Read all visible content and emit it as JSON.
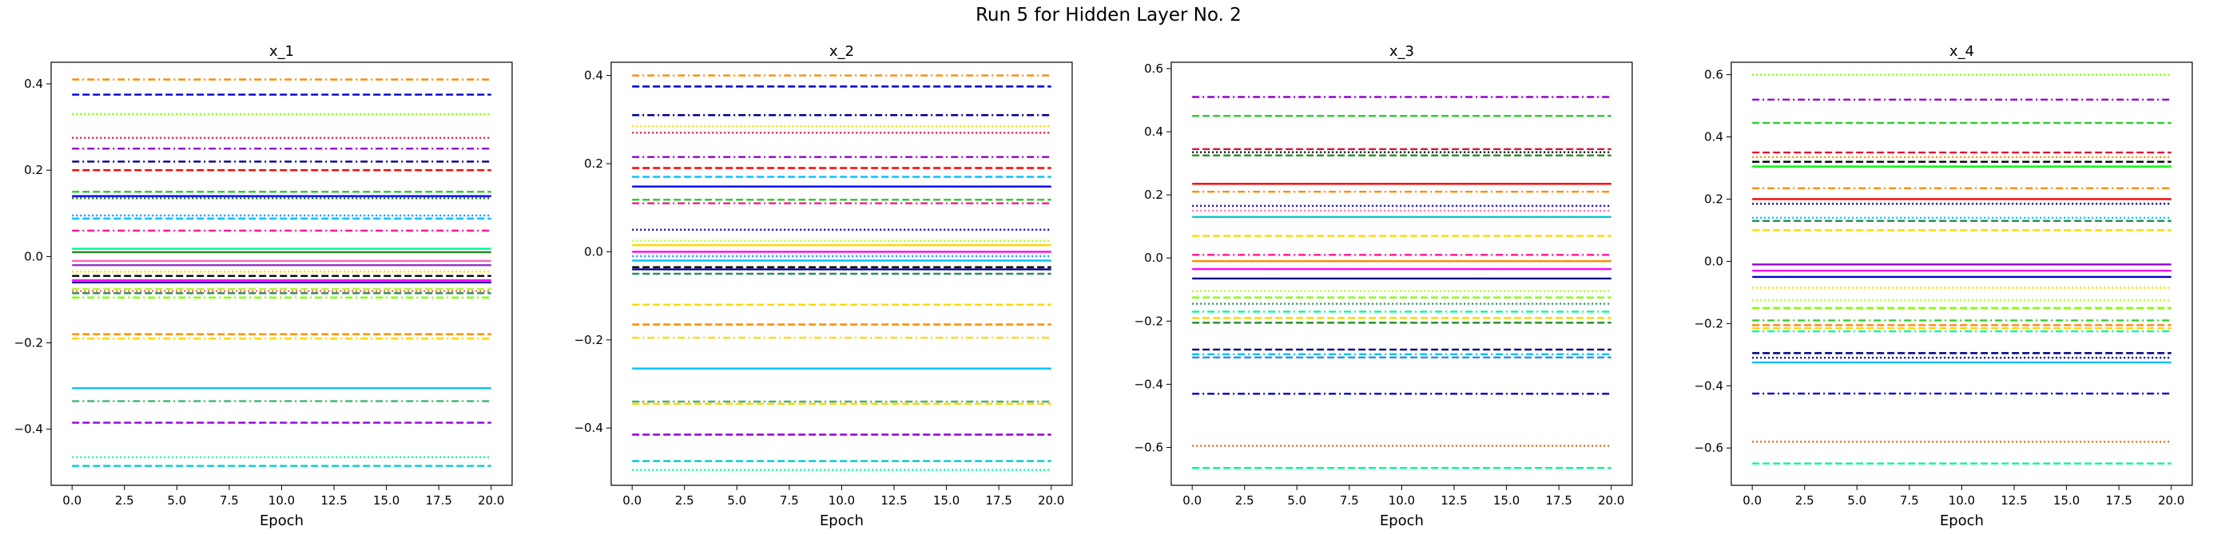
{
  "figure_title": "Run 5 for Hidden Layer No. 2",
  "chart_data": [
    {
      "type": "line",
      "title": "x_1",
      "xlabel": "Epoch",
      "ylabel": "",
      "xlim": [
        -1,
        21
      ],
      "ylim": [
        -0.53,
        0.45
      ],
      "xticks": [
        0.0,
        2.5,
        5.0,
        7.5,
        10.0,
        12.5,
        15.0,
        17.5,
        20.0
      ],
      "yticks": [
        -0.4,
        -0.2,
        0.0,
        0.2,
        0.4
      ],
      "x": [
        0,
        20
      ],
      "series": [
        {
          "color": "#ff8c00",
          "dash": "dashdot",
          "value": 0.41
        },
        {
          "color": "#0000cd",
          "dash": "dashed",
          "value": 0.375
        },
        {
          "color": "#7fff00",
          "dash": "dotted",
          "value": 0.33
        },
        {
          "color": "#dc143c",
          "dash": "dotted",
          "value": 0.275
        },
        {
          "color": "#9400d3",
          "dash": "dashdot",
          "value": 0.25
        },
        {
          "color": "#00008b",
          "dash": "dashdot",
          "value": 0.22
        },
        {
          "color": "#ff0000",
          "dash": "dashed",
          "value": 0.2
        },
        {
          "color": "#32cd32",
          "dash": "dashed",
          "value": 0.15
        },
        {
          "color": "#006400",
          "dash": "dotted",
          "value": 0.135
        },
        {
          "color": "#0000ff",
          "dash": "solid",
          "value": 0.14
        },
        {
          "color": "#1e90ff",
          "dash": "dotted",
          "value": 0.095
        },
        {
          "color": "#00bfff",
          "dash": "dashed",
          "value": 0.088
        },
        {
          "color": "#ff1493",
          "dash": "dashdot",
          "value": 0.06
        },
        {
          "color": "#00fa9a",
          "dash": "solid",
          "value": 0.018
        },
        {
          "color": "#228b22",
          "dash": "solid",
          "value": 0.01
        },
        {
          "color": "#ff69b4",
          "dash": "solid",
          "value": -0.01
        },
        {
          "color": "#9932cc",
          "dash": "solid",
          "value": -0.02
        },
        {
          "color": "#ffd700",
          "dash": "dotted",
          "value": -0.035
        },
        {
          "color": "#000000",
          "dash": "dashed",
          "value": -0.045
        },
        {
          "color": "#ff00ff",
          "dash": "solid",
          "value": -0.055
        },
        {
          "color": "#00008b",
          "dash": "solid",
          "value": -0.06
        },
        {
          "color": "#adff2f",
          "dash": "dashed",
          "value": -0.075
        },
        {
          "color": "#ff6347",
          "dash": "dotted",
          "value": -0.08
        },
        {
          "color": "#2e8b57",
          "dash": "dashed",
          "value": -0.085
        },
        {
          "color": "#7fff00",
          "dash": "dashdot",
          "value": -0.095
        },
        {
          "color": "#ff8c00",
          "dash": "dashed",
          "value": -0.18
        },
        {
          "color": "#ffd700",
          "dash": "dashdot",
          "value": -0.19
        },
        {
          "color": "#00bfff",
          "dash": "solid",
          "value": -0.305
        },
        {
          "color": "#3cb371",
          "dash": "dashdot",
          "value": -0.335
        },
        {
          "color": "#9400d3",
          "dash": "dashed",
          "value": -0.385
        },
        {
          "color": "#00fa9a",
          "dash": "dotted",
          "value": -0.465
        },
        {
          "color": "#00ced1",
          "dash": "dashed",
          "value": -0.485
        }
      ]
    },
    {
      "type": "line",
      "title": "x_2",
      "xlabel": "Epoch",
      "ylabel": "",
      "xlim": [
        -1,
        21
      ],
      "ylim": [
        -0.53,
        0.43
      ],
      "xticks": [
        0.0,
        2.5,
        5.0,
        7.5,
        10.0,
        12.5,
        15.0,
        17.5,
        20.0
      ],
      "yticks": [
        -0.4,
        -0.2,
        0.0,
        0.2,
        0.4
      ],
      "x": [
        0,
        20
      ],
      "series": [
        {
          "color": "#ff8c00",
          "dash": "dashdot",
          "value": 0.4
        },
        {
          "color": "#0000cd",
          "dash": "dashed",
          "value": 0.375
        },
        {
          "color": "#00008b",
          "dash": "dashdot",
          "value": 0.31
        },
        {
          "color": "#ffd700",
          "dash": "dotted",
          "value": 0.285
        },
        {
          "color": "#dc143c",
          "dash": "dotted",
          "value": 0.27
        },
        {
          "color": "#9400d3",
          "dash": "dashdot",
          "value": 0.215
        },
        {
          "color": "#ff0000",
          "dash": "dashed",
          "value": 0.19
        },
        {
          "color": "#00bfff",
          "dash": "dashed",
          "value": 0.17
        },
        {
          "color": "#0000ff",
          "dash": "solid",
          "value": 0.148
        },
        {
          "color": "#32cd32",
          "dash": "dashed",
          "value": 0.118
        },
        {
          "color": "#ff1493",
          "dash": "dashdot",
          "value": 0.11
        },
        {
          "color": "#0000cd",
          "dash": "dotted",
          "value": 0.05
        },
        {
          "color": "#adff2f",
          "dash": "dotted",
          "value": 0.025
        },
        {
          "color": "#ffd700",
          "dash": "solid",
          "value": 0.015
        },
        {
          "color": "#ff00ff",
          "dash": "solid",
          "value": 0.0
        },
        {
          "color": "#1e90ff",
          "dash": "dotted",
          "value": -0.01
        },
        {
          "color": "#00bfff",
          "dash": "solid",
          "value": -0.02
        },
        {
          "color": "#000000",
          "dash": "dashed",
          "value": -0.035
        },
        {
          "color": "#00008b",
          "dash": "solid",
          "value": -0.04
        },
        {
          "color": "#2e8b57",
          "dash": "dashed",
          "value": -0.05
        },
        {
          "color": "#ffd700",
          "dash": "dashed",
          "value": -0.12
        },
        {
          "color": "#ff8c00",
          "dash": "dashed",
          "value": -0.165
        },
        {
          "color": "#ffd700",
          "dash": "dashdot",
          "value": -0.195
        },
        {
          "color": "#00bfff",
          "dash": "solid",
          "value": -0.265
        },
        {
          "color": "#3cb371",
          "dash": "dashdot",
          "value": -0.34
        },
        {
          "color": "#ffd700",
          "dash": "dashed",
          "value": -0.345
        },
        {
          "color": "#9400d3",
          "dash": "dashed",
          "value": -0.415
        },
        {
          "color": "#00ced1",
          "dash": "dashed",
          "value": -0.475
        },
        {
          "color": "#00fa9a",
          "dash": "dotted",
          "value": -0.495
        }
      ]
    },
    {
      "type": "line",
      "title": "x_3",
      "xlabel": "Epoch",
      "ylabel": "",
      "xlim": [
        -1,
        21
      ],
      "ylim": [
        -0.72,
        0.62
      ],
      "xticks": [
        0.0,
        2.5,
        5.0,
        7.5,
        10.0,
        12.5,
        15.0,
        17.5,
        20.0
      ],
      "yticks": [
        -0.6,
        -0.4,
        -0.2,
        0.0,
        0.2,
        0.4,
        0.6
      ],
      "x": [
        0,
        20
      ],
      "series": [
        {
          "color": "#9400d3",
          "dash": "dashdot",
          "value": 0.51
        },
        {
          "color": "#32cd32",
          "dash": "dashed",
          "value": 0.45
        },
        {
          "color": "#dc143c",
          "dash": "dashed",
          "value": 0.345
        },
        {
          "color": "#000000",
          "dash": "dotted",
          "value": 0.335
        },
        {
          "color": "#228b22",
          "dash": "dashed",
          "value": 0.325
        },
        {
          "color": "#ff0000",
          "dash": "solid",
          "value": 0.235
        },
        {
          "color": "#ff8c00",
          "dash": "dashdot",
          "value": 0.21
        },
        {
          "color": "#0000cd",
          "dash": "dotted",
          "value": 0.165
        },
        {
          "color": "#ff69b4",
          "dash": "dotted",
          "value": 0.15
        },
        {
          "color": "#00ced1",
          "dash": "solid",
          "value": 0.13
        },
        {
          "color": "#ffd700",
          "dash": "dashed",
          "value": 0.07
        },
        {
          "color": "#ff1493",
          "dash": "dashdot",
          "value": 0.01
        },
        {
          "color": "#ff8c00",
          "dash": "solid",
          "value": -0.01
        },
        {
          "color": "#ff00ff",
          "dash": "solid",
          "value": -0.035
        },
        {
          "color": "#00008b",
          "dash": "solid",
          "value": -0.065
        },
        {
          "color": "#adff2f",
          "dash": "dotted",
          "value": -0.105
        },
        {
          "color": "#7fff00",
          "dash": "dashed",
          "value": -0.125
        },
        {
          "color": "#2e8b57",
          "dash": "dotted",
          "value": -0.145
        },
        {
          "color": "#00fa9a",
          "dash": "dashdot",
          "value": -0.17
        },
        {
          "color": "#ffd700",
          "dash": "dashed",
          "value": -0.19
        },
        {
          "color": "#228b22",
          "dash": "dashed",
          "value": -0.205
        },
        {
          "color": "#000080",
          "dash": "dashed",
          "value": -0.29
        },
        {
          "color": "#00bfff",
          "dash": "dashdot",
          "value": -0.305
        },
        {
          "color": "#1e90ff",
          "dash": "dashed",
          "value": -0.315
        },
        {
          "color": "#0000cd",
          "dash": "dashdot",
          "value": -0.43
        },
        {
          "color": "#d2691e",
          "dash": "dotted",
          "value": -0.595
        },
        {
          "color": "#00fa9a",
          "dash": "dashed",
          "value": -0.665
        }
      ]
    },
    {
      "type": "line",
      "title": "x_4",
      "xlabel": "Epoch",
      "ylabel": "",
      "xlim": [
        -1,
        21
      ],
      "ylim": [
        -0.72,
        0.64
      ],
      "xticks": [
        0.0,
        2.5,
        5.0,
        7.5,
        10.0,
        12.5,
        15.0,
        17.5,
        20.0
      ],
      "yticks": [
        -0.6,
        -0.4,
        -0.2,
        0.0,
        0.2,
        0.4,
        0.6
      ],
      "x": [
        0,
        20
      ],
      "series": [
        {
          "color": "#7fff00",
          "dash": "dotted",
          "value": 0.6
        },
        {
          "color": "#9400d3",
          "dash": "dashdot",
          "value": 0.52
        },
        {
          "color": "#32cd32",
          "dash": "dashed",
          "value": 0.445
        },
        {
          "color": "#dc143c",
          "dash": "dashed",
          "value": 0.35
        },
        {
          "color": "#ff8c00",
          "dash": "dotted",
          "value": 0.335
        },
        {
          "color": "#000000",
          "dash": "dashed",
          "value": 0.32
        },
        {
          "color": "#00ff00",
          "dash": "solid",
          "value": 0.305
        },
        {
          "color": "#ff8c00",
          "dash": "dashdot",
          "value": 0.235
        },
        {
          "color": "#ff0000",
          "dash": "solid",
          "value": 0.2
        },
        {
          "color": "#000080",
          "dash": "dotted",
          "value": 0.185
        },
        {
          "color": "#00bfff",
          "dash": "dotted",
          "value": 0.14
        },
        {
          "color": "#2e8b57",
          "dash": "dashed",
          "value": 0.13
        },
        {
          "color": "#ffd700",
          "dash": "dashed",
          "value": 0.1
        },
        {
          "color": "#9400d3",
          "dash": "solid",
          "value": -0.01
        },
        {
          "color": "#ff00ff",
          "dash": "solid",
          "value": -0.03
        },
        {
          "color": "#0000cd",
          "dash": "solid",
          "value": -0.05
        },
        {
          "color": "#ffd700",
          "dash": "dotted",
          "value": -0.085
        },
        {
          "color": "#adff2f",
          "dash": "dotted",
          "value": -0.125
        },
        {
          "color": "#7fff00",
          "dash": "dashed",
          "value": -0.15
        },
        {
          "color": "#32cd32",
          "dash": "dashdot",
          "value": -0.19
        },
        {
          "color": "#ff8c00",
          "dash": "dashed",
          "value": -0.205
        },
        {
          "color": "#ffd700",
          "dash": "dashed",
          "value": -0.215
        },
        {
          "color": "#00fa9a",
          "dash": "dashdot",
          "value": -0.225
        },
        {
          "color": "#000080",
          "dash": "dashed",
          "value": -0.295
        },
        {
          "color": "#00008b",
          "dash": "dotted",
          "value": -0.31
        },
        {
          "color": "#00bfff",
          "dash": "solid",
          "value": -0.325
        },
        {
          "color": "#0000cd",
          "dash": "dashdot",
          "value": -0.425
        },
        {
          "color": "#d2691e",
          "dash": "dotted",
          "value": -0.58
        },
        {
          "color": "#00fa9a",
          "dash": "dashed",
          "value": -0.65
        }
      ]
    }
  ]
}
